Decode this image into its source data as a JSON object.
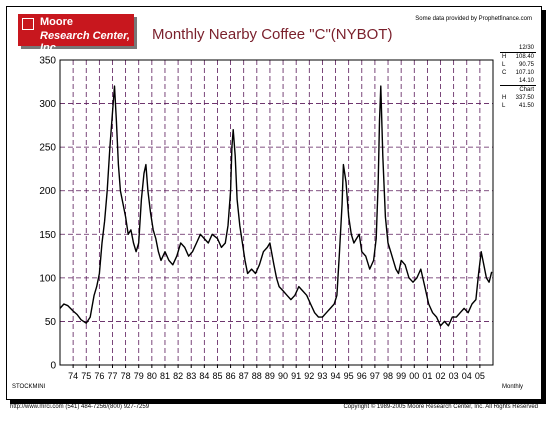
{
  "header": {
    "logo_line1": "Moore",
    "logo_line2": "Research Center, Inc.",
    "source_note": "Some data provided by Prophetfinance.com"
  },
  "stats_box": {
    "date": "12/30",
    "current": [
      {
        "label": "H",
        "value": "108.40"
      },
      {
        "label": "L",
        "value": "90.75"
      },
      {
        "label": "C",
        "value": "107.10"
      },
      {
        "label": "",
        "value": "14.10"
      }
    ],
    "chart_heading": "Chart",
    "chart_range": [
      {
        "label": "H",
        "value": "337.50"
      },
      {
        "label": "L",
        "value": "41.50"
      }
    ]
  },
  "labels": {
    "bottom_left": "STOCKMINI",
    "bottom_right": "Monthly"
  },
  "footer": {
    "left": "http://www.mrci.com   (541) 484-7256/(800) 927-7259",
    "right": "Copyright © 1989-2005 Moore Research Center, Inc. All Rights Reserved"
  },
  "colors": {
    "logo_bg": "#c8171e",
    "title": "#7a1f2b",
    "grid_h": "#5a1a5a",
    "grid_v": "#5a1a5a",
    "price_line": "#000000"
  },
  "chart_data": {
    "type": "line",
    "title": "Monthly Nearby Coffee \"C\"(NYBOT)",
    "xlabel": "",
    "ylabel": "",
    "ylim": [
      0,
      350
    ],
    "xlim": [
      1973.0,
      2006.0
    ],
    "yticks": [
      0,
      50,
      100,
      150,
      200,
      250,
      300,
      350
    ],
    "xtick_labels": [
      "74",
      "75",
      "76",
      "77",
      "78",
      "79",
      "80",
      "81",
      "82",
      "83",
      "84",
      "85",
      "86",
      "87",
      "88",
      "89",
      "90",
      "91",
      "92",
      "93",
      "94",
      "95",
      "96",
      "97",
      "98",
      "99",
      "00",
      "01",
      "02",
      "03",
      "04",
      "05"
    ],
    "xtick_years": [
      1974,
      1975,
      1976,
      1977,
      1978,
      1979,
      1980,
      1981,
      1982,
      1983,
      1984,
      1985,
      1986,
      1987,
      1988,
      1989,
      1990,
      1991,
      1992,
      1993,
      1994,
      1995,
      1996,
      1997,
      1998,
      1999,
      2000,
      2001,
      2002,
      2003,
      2004,
      2005
    ],
    "grid": true,
    "series": [
      {
        "name": "",
        "x": [
          1973.0,
          1973.3,
          1973.6,
          1974.0,
          1974.3,
          1974.6,
          1975.0,
          1975.3,
          1975.6,
          1975.8,
          1976.0,
          1976.2,
          1976.4,
          1976.6,
          1976.8,
          1977.0,
          1977.15,
          1977.3,
          1977.45,
          1977.6,
          1977.8,
          1978.0,
          1978.2,
          1978.4,
          1978.6,
          1978.8,
          1979.0,
          1979.2,
          1979.4,
          1979.55,
          1979.7,
          1979.9,
          1980.1,
          1980.3,
          1980.5,
          1980.7,
          1981.0,
          1981.3,
          1981.6,
          1981.9,
          1982.2,
          1982.5,
          1982.8,
          1983.1,
          1983.4,
          1983.7,
          1984.0,
          1984.3,
          1984.6,
          1985.0,
          1985.3,
          1985.6,
          1985.8,
          1986.0,
          1986.1,
          1986.2,
          1986.35,
          1986.5,
          1986.7,
          1986.9,
          1987.1,
          1987.3,
          1987.6,
          1987.9,
          1988.2,
          1988.5,
          1988.8,
          1989.0,
          1989.3,
          1989.5,
          1989.7,
          1990.0,
          1990.3,
          1990.6,
          1990.9,
          1991.2,
          1991.5,
          1991.8,
          1992.1,
          1992.4,
          1992.7,
          1993.0,
          1993.3,
          1993.6,
          1993.9,
          1994.1,
          1994.3,
          1994.5,
          1994.6,
          1994.8,
          1995.0,
          1995.2,
          1995.4,
          1995.6,
          1995.8,
          1996.0,
          1996.3,
          1996.6,
          1996.9,
          1997.1,
          1997.25,
          1997.35,
          1997.45,
          1997.6,
          1997.8,
          1998.0,
          1998.2,
          1998.4,
          1998.6,
          1998.8,
          1999.0,
          1999.3,
          1999.6,
          1999.9,
          2000.2,
          2000.5,
          2000.8,
          2001.1,
          2001.4,
          2001.7,
          2002.0,
          2002.3,
          2002.6,
          2002.9,
          2003.2,
          2003.5,
          2003.8,
          2004.1,
          2004.4,
          2004.7,
          2004.9,
          2005.1,
          2005.3,
          2005.5,
          2005.7,
          2005.9
        ],
        "y": [
          65,
          70,
          68,
          62,
          58,
          52,
          48,
          55,
          80,
          90,
          105,
          140,
          165,
          200,
          250,
          290,
          320,
          280,
          230,
          200,
          185,
          170,
          150,
          155,
          140,
          130,
          140,
          190,
          220,
          230,
          200,
          175,
          155,
          145,
          130,
          120,
          130,
          120,
          115,
          125,
          140,
          135,
          125,
          130,
          140,
          150,
          145,
          140,
          150,
          145,
          135,
          140,
          160,
          200,
          250,
          270,
          240,
          190,
          160,
          140,
          120,
          105,
          110,
          105,
          115,
          130,
          135,
          140,
          115,
          100,
          90,
          85,
          80,
          75,
          80,
          90,
          85,
          80,
          70,
          60,
          55,
          55,
          60,
          65,
          70,
          80,
          130,
          185,
          230,
          210,
          170,
          150,
          140,
          145,
          150,
          130,
          125,
          110,
          120,
          145,
          210,
          280,
          320,
          240,
          170,
          140,
          130,
          120,
          110,
          105,
          120,
          115,
          100,
          95,
          100,
          110,
          90,
          70,
          60,
          55,
          45,
          50,
          45,
          55,
          55,
          60,
          65,
          60,
          70,
          75,
          105,
          130,
          115,
          100,
          95,
          107
        ]
      }
    ]
  }
}
